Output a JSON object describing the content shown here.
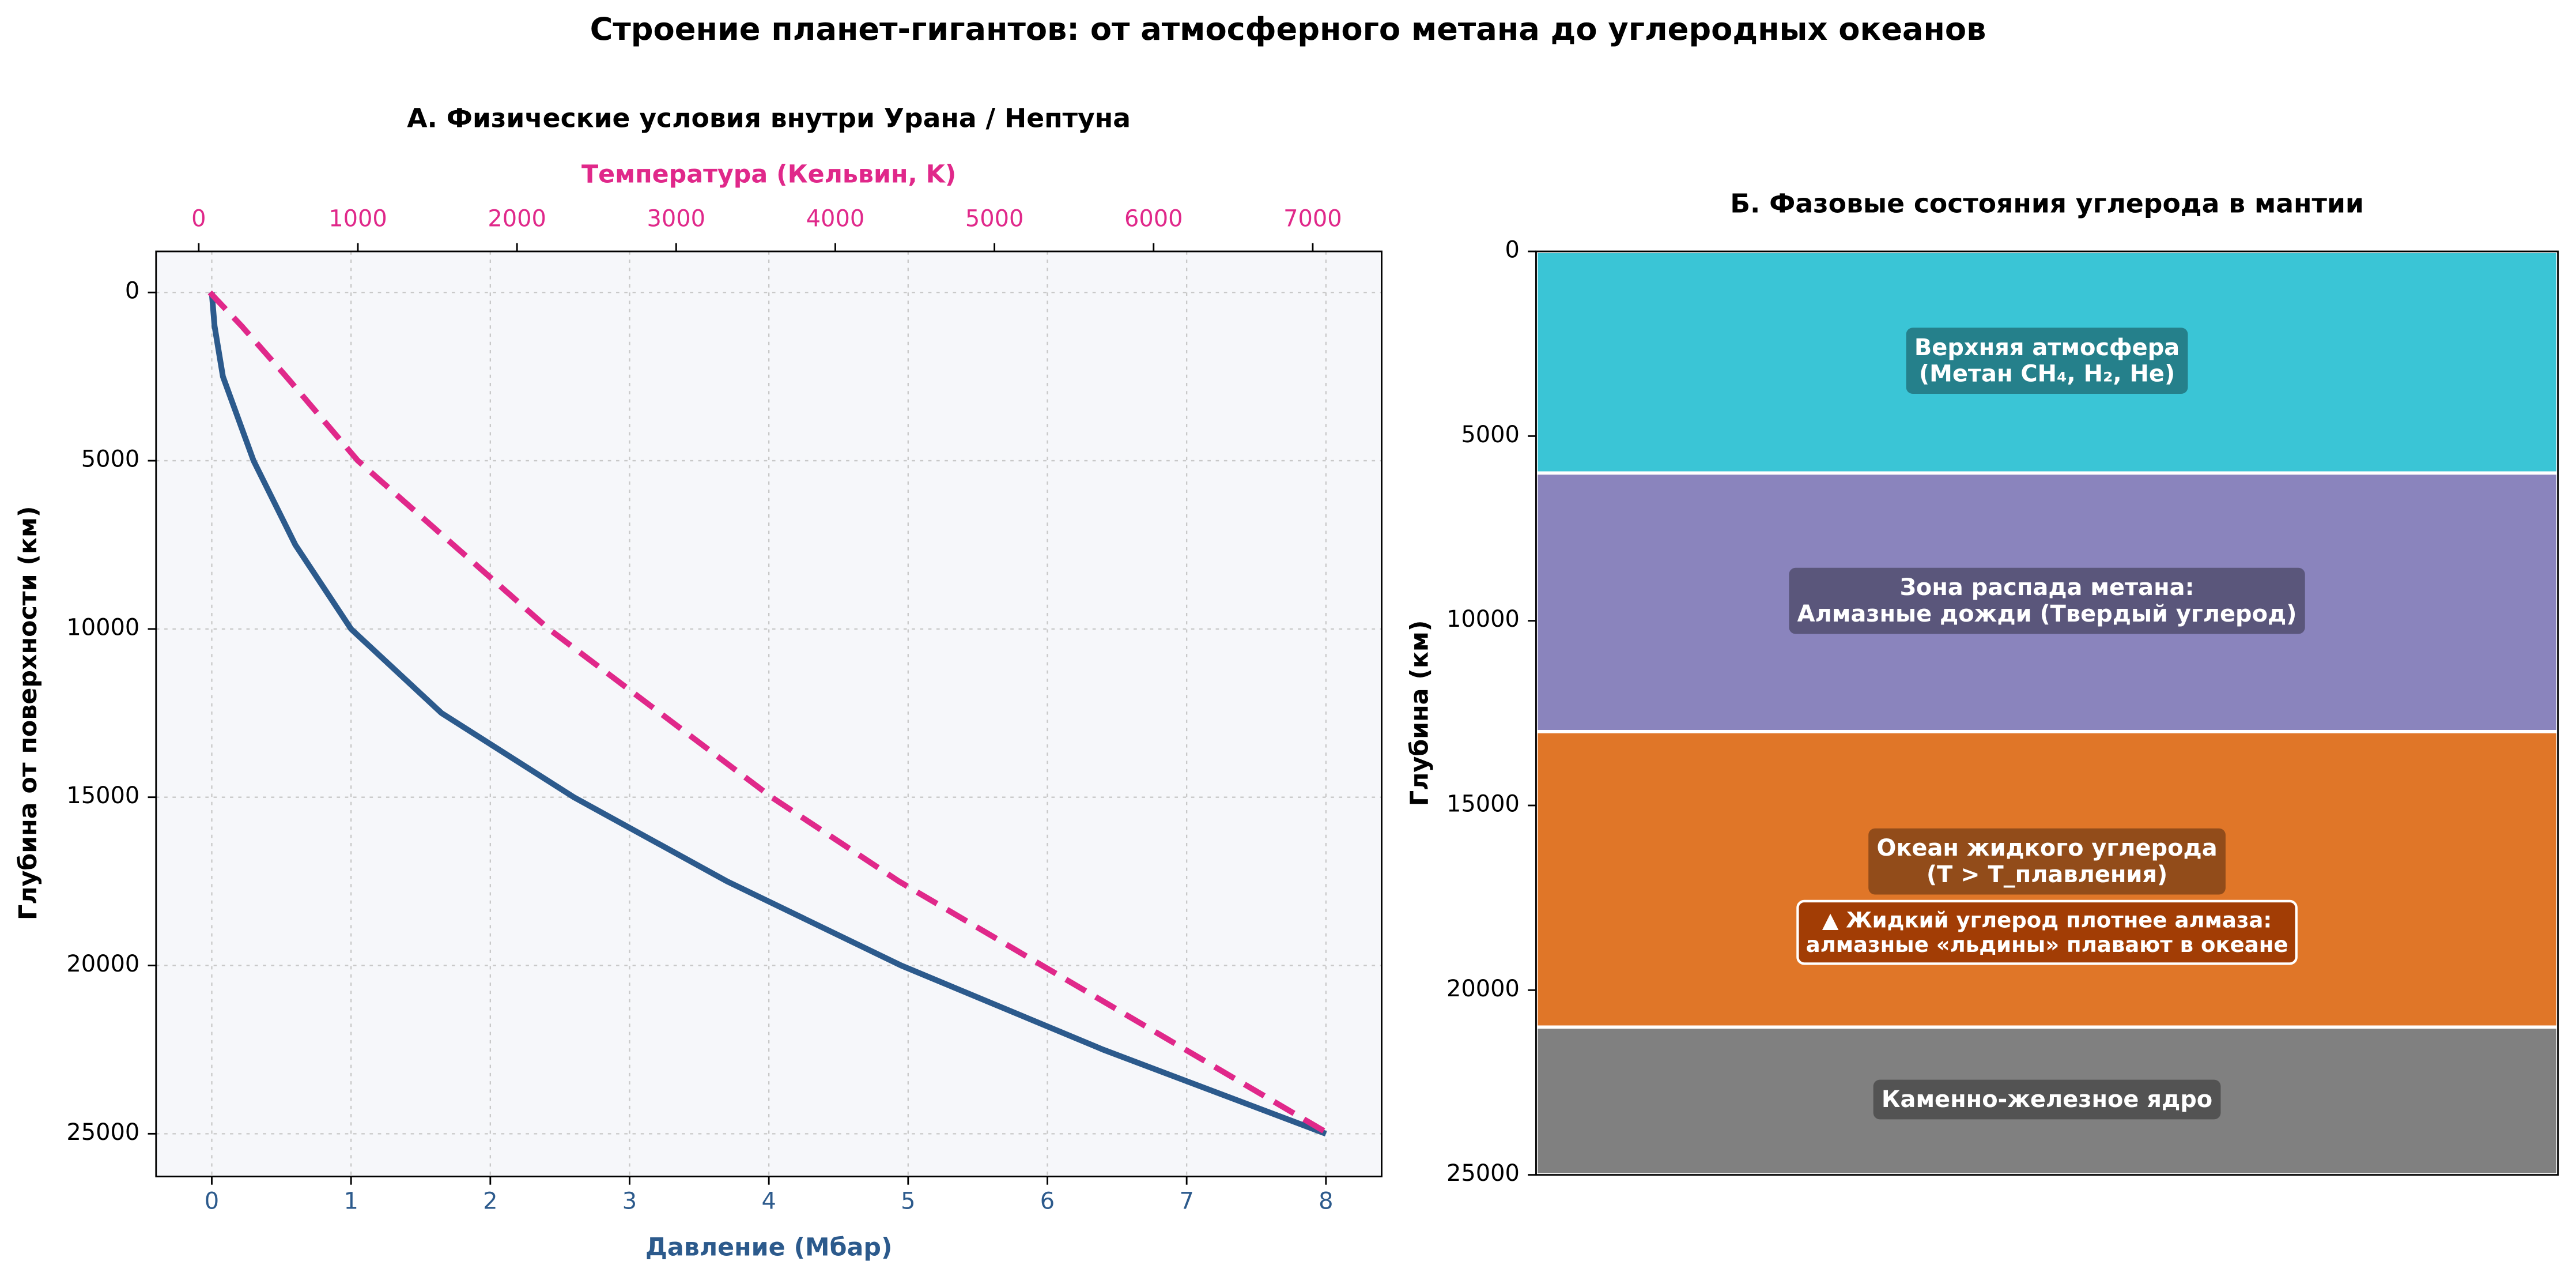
{
  "title": "Строение планет-гигантов: от атмосферного метана до углеродных океанов",
  "chart_data": [
    {
      "type": "line",
      "title": "А. Физические условия внутри Урана / Нептуна",
      "xlabel": "Давление (Мбар)",
      "x2label": "Температура (Кельвин, K)",
      "ylabel": "Глубина от поверхности (км)",
      "xlim": [
        -0.4,
        8.4
      ],
      "xticks": [
        0,
        1,
        2,
        3,
        4,
        5,
        6,
        7,
        8
      ],
      "x2lim": [
        -268,
        7433
      ],
      "x2ticks": [
        0,
        1000,
        2000,
        3000,
        4000,
        5000,
        6000,
        7000
      ],
      "ylim": [
        26270,
        -1220
      ],
      "yticks": [
        0,
        5000,
        10000,
        15000,
        20000,
        25000
      ],
      "grid": true,
      "y": [
        0,
        500,
        1000,
        2500,
        5000,
        7500,
        10000,
        12500,
        15000,
        17500,
        20000,
        22500,
        25000
      ],
      "series": [
        {
          "axis": "x",
          "color": "#2c5a8c",
          "dashed": false,
          "x": [
            0,
            0.01,
            0.02,
            0.08,
            0.3,
            0.6,
            1.0,
            1.65,
            2.6,
            3.7,
            4.95,
            6.4,
            8.0
          ]
        },
        {
          "axis": "x2",
          "color": "#e0288a",
          "dashed": true,
          "x": [
            70,
            170,
            270,
            550,
            1000,
            1600,
            2200,
            2900,
            3600,
            4400,
            5300,
            6200,
            7100
          ]
        }
      ]
    },
    {
      "type": "stacked_layers",
      "title": "Б. Фазовые состояния углерода в мантии",
      "ylabel": "Глубина (км)",
      "ylim": [
        25000,
        0
      ],
      "yticks": [
        0,
        5000,
        10000,
        15000,
        20000,
        25000
      ],
      "layers": [
        {
          "label": [
            "Верхняя атмосфера",
            "(Метан CH₄, H₂, He)"
          ],
          "color": "#3ac5d6",
          "value": 6000
        },
        {
          "label": [
            "Зона распада метана:",
            "Алмазные дожди (Твердый углерод)"
          ],
          "color": "#8a84bd",
          "value": 7000
        },
        {
          "label": [
            "Океан жидкого углерода",
            "(T > T_плавления)"
          ],
          "color": "#e07628",
          "value": 8000
        },
        {
          "label": [
            "Каменно-железное ядро"
          ],
          "color": "#808080",
          "value": 4000
        }
      ],
      "annotation": [
        "▲ Жидкий углерод плотнее алмаза:",
        "алмазные «льдины» плавают в океане"
      ]
    }
  ]
}
